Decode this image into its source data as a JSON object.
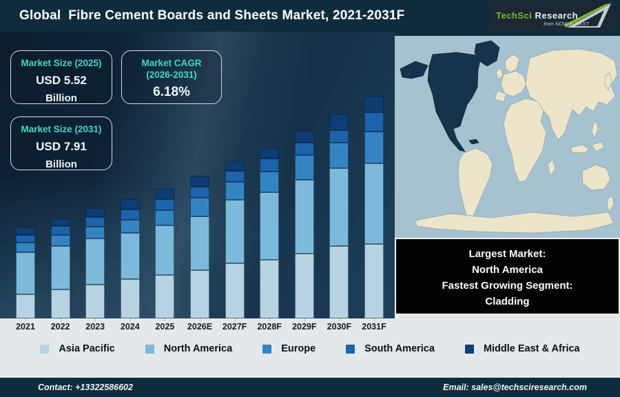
{
  "header": {
    "title": "Global  Fibre Cement Boards and Sheets Market, 2021-2031F",
    "logo": {
      "brand_primary": "TechSci",
      "brand_secondary": "Research",
      "tagline": "from NOW to NEXT"
    }
  },
  "stats": {
    "market_size_2025": {
      "label": "Market Size (2025)",
      "value": "USD 5.52",
      "unit": "Billion"
    },
    "market_cagr": {
      "label": "Market CAGR",
      "label2": "(2026-2031)",
      "value": "6.18%"
    },
    "market_size_2031": {
      "label": "Market Size (2031)",
      "value": "USD 7.91",
      "unit": "Billion"
    }
  },
  "chart_data": {
    "type": "bar",
    "stacked": true,
    "title": "Global Fibre Cement Boards and Sheets Market, 2021-2031F",
    "unit": "USD Billion",
    "categories": [
      "2021",
      "2022",
      "2023",
      "2024",
      "2025",
      "2026E",
      "2027F",
      "2028F",
      "2029F",
      "2030F",
      "2031F"
    ],
    "series": [
      {
        "name": "Asia Pacific",
        "color": "#b7d3e3",
        "values": [
          1.22,
          1.37,
          1.55,
          1.74,
          1.84,
          1.98,
          2.19,
          2.27,
          2.41,
          2.63,
          2.64
        ]
      },
      {
        "name": "North America",
        "color": "#7db9da",
        "values": [
          2.07,
          2.07,
          2.08,
          2.03,
          2.13,
          2.21,
          2.5,
          2.6,
          2.78,
          2.83,
          2.87
        ]
      },
      {
        "name": "Europe",
        "color": "#3584c2",
        "values": [
          0.51,
          0.53,
          0.53,
          0.58,
          0.65,
          0.76,
          0.72,
          0.79,
          0.91,
          0.94,
          1.13
        ]
      },
      {
        "name": "South America",
        "color": "#1d63ac",
        "values": [
          0.37,
          0.43,
          0.46,
          0.45,
          0.45,
          0.47,
          0.44,
          0.51,
          0.48,
          0.46,
          0.69
        ]
      },
      {
        "name": "Middle East & Africa",
        "color": "#0d3d72",
        "values": [
          0.37,
          0.37,
          0.4,
          0.45,
          0.45,
          0.44,
          0.38,
          0.42,
          0.43,
          0.59,
          0.58
        ]
      }
    ],
    "totals_usd_billion": [
      4.54,
      4.77,
      5.02,
      5.25,
      5.52,
      5.86,
      6.23,
      6.59,
      7.01,
      7.45,
      7.91
    ],
    "legend_position": "bottom",
    "gridlines": false,
    "y_axis_visible": false
  },
  "map_callout": {
    "lines": [
      "Largest Market:",
      "North America",
      "Fastest Growing Segment:",
      "Cladding"
    ],
    "highlighted_region": "North America",
    "map_colors": {
      "ocean": "#a6c2d1",
      "land": "#ece5c9",
      "highlight": "#16334d"
    }
  },
  "footer": {
    "contact": "Contact: +13322586602",
    "email": "Email: sales@techsciresearch.com"
  },
  "theme": {
    "header_bg": "#0f2c3d",
    "accent_teal": "#46d7c2",
    "band_bg": "#e3e9eb",
    "callout_bg": "#020202"
  }
}
